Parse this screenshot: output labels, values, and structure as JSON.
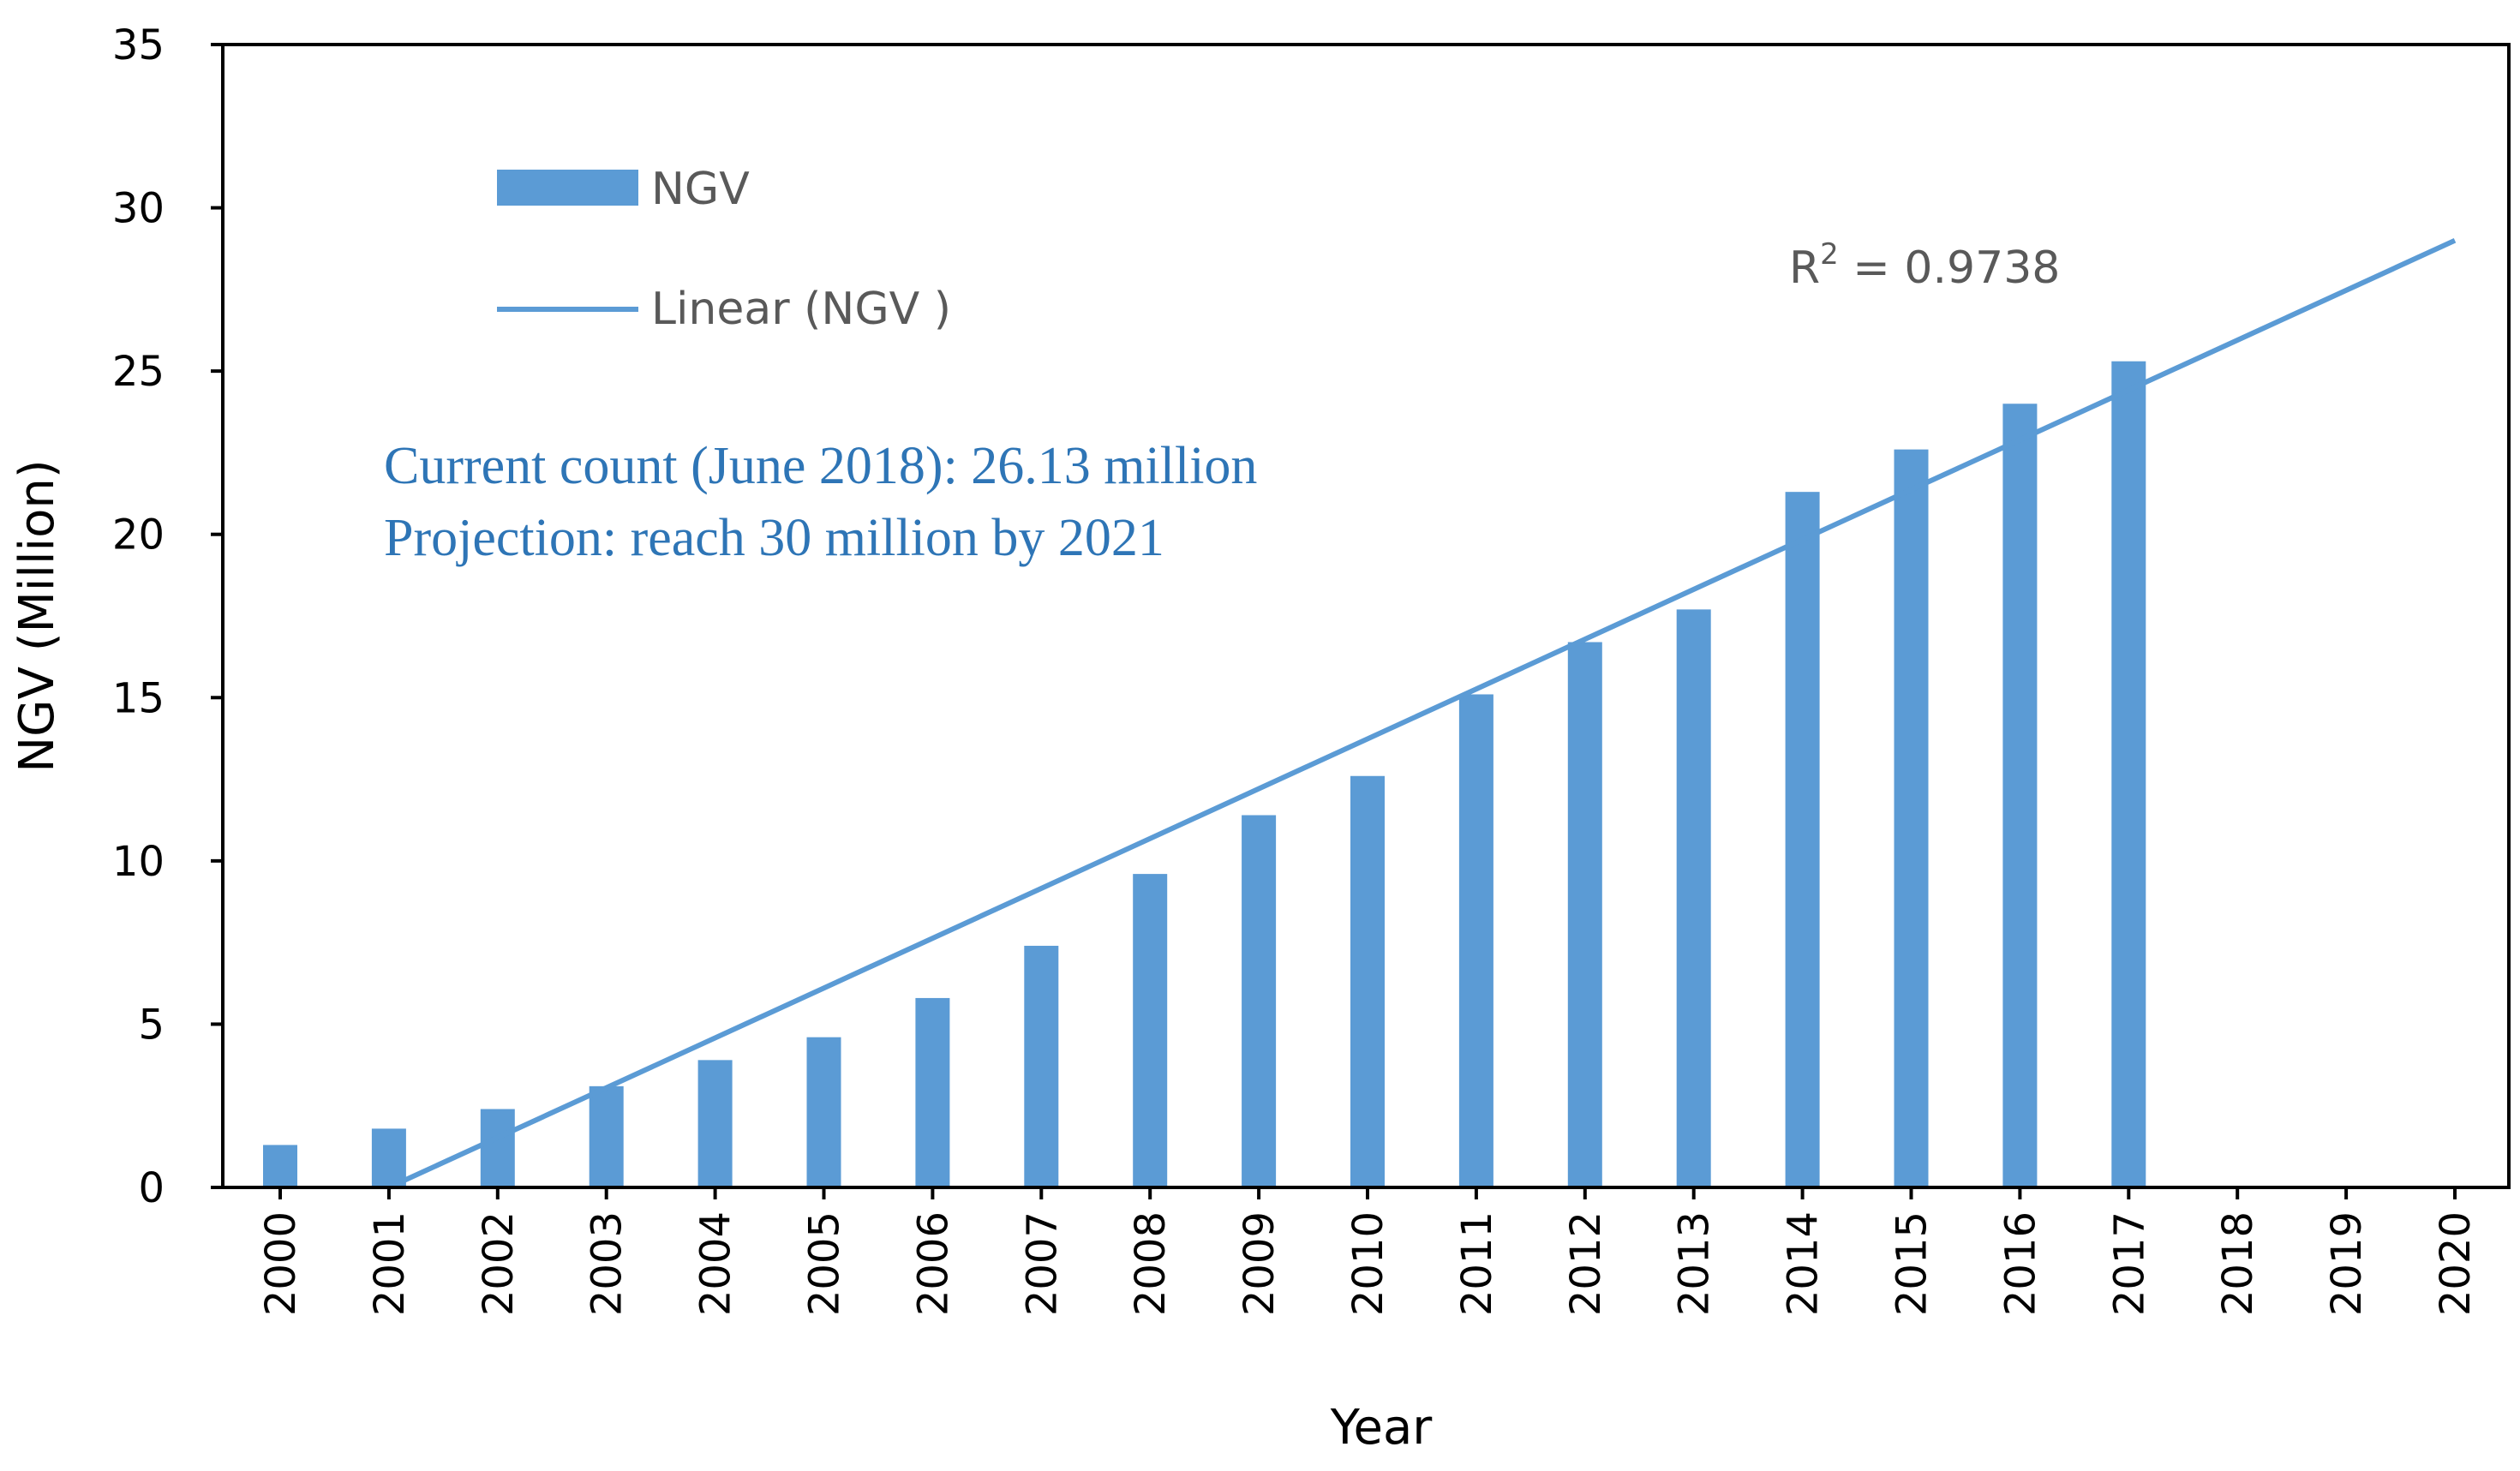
{
  "chart_data": {
    "type": "bar",
    "categories": [
      "2000",
      "2001",
      "2002",
      "2003",
      "2004",
      "2005",
      "2006",
      "2007",
      "2008",
      "2009",
      "2010",
      "2011",
      "2012",
      "2013",
      "2014",
      "2015",
      "2016",
      "2017",
      "2018",
      "2019",
      "2020"
    ],
    "series": [
      {
        "name": "NGV",
        "type": "bar",
        "values": [
          1.3,
          1.8,
          2.4,
          3.1,
          3.9,
          4.6,
          5.8,
          7.4,
          9.6,
          11.4,
          12.6,
          15.1,
          16.7,
          17.7,
          21.3,
          22.6,
          24.0,
          25.3,
          null,
          null,
          null
        ]
      },
      {
        "name": "Linear (NGV )",
        "type": "line",
        "x": [
          "2001",
          "2020"
        ],
        "y": [
          0.0,
          29.0
        ]
      }
    ],
    "xlabel": "Year",
    "ylabel": "NGV (Million)",
    "ylim": [
      0,
      35
    ],
    "yticks": [
      0,
      5,
      10,
      15,
      20,
      25,
      30,
      35
    ],
    "grid": false,
    "legend_position": "top-left",
    "colors": {
      "bar": "#5b9bd5",
      "trend": "#5b9bd5",
      "note": "#2e75b6"
    },
    "annotations": {
      "r2_prefix": "R",
      "r2_sup": "2",
      "r2_suffix": " = 0.9738",
      "note_line1": "Current count (June 2018): 26.13 million",
      "note_line2": "Projection: reach 30 million by 2021"
    }
  }
}
